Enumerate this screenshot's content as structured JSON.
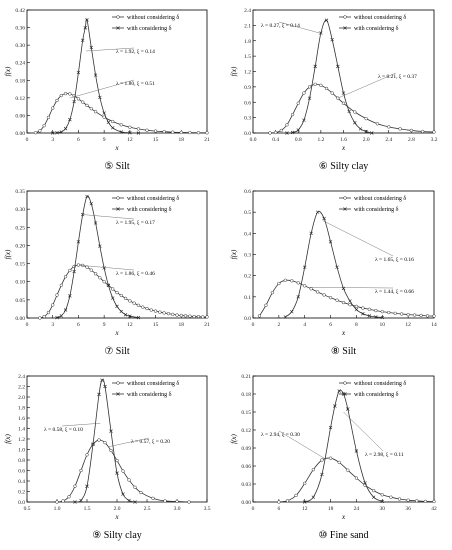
{
  "chart_data": [
    {
      "type": "line",
      "caption_number": "⑤",
      "caption_text": "Silt",
      "xlabel": "x",
      "ylabel": "f(x)",
      "xlim": [
        0,
        21
      ],
      "ylim": [
        0,
        0.45
      ],
      "xticks": [
        "0",
        "3",
        "6",
        "9",
        "12",
        "15",
        "18",
        "21"
      ],
      "yticks": [
        "0.00",
        "0.06",
        "0.12",
        "0.18",
        "0.24",
        "0.30",
        "0.36",
        "0.42"
      ],
      "legend": [
        "without considering δ",
        "with considering δ"
      ],
      "annotations": [
        "λ = 1.92, ξ = 0.14",
        "λ = 1.80, ξ = 0.51"
      ],
      "series": [
        {
          "name": "without considering δ",
          "marker": "circle",
          "x": [
            1,
            1.5,
            2,
            2.5,
            3,
            3.5,
            4,
            4.5,
            5,
            5.5,
            6,
            6.5,
            7,
            7.5,
            8,
            9,
            10,
            11,
            12,
            13,
            14,
            15,
            16,
            17,
            18,
            19,
            20,
            21
          ],
          "y": [
            0.001,
            0.008,
            0.027,
            0.057,
            0.091,
            0.119,
            0.137,
            0.144,
            0.143,
            0.136,
            0.125,
            0.113,
            0.101,
            0.089,
            0.078,
            0.058,
            0.042,
            0.03,
            0.021,
            0.015,
            0.01,
            0.007,
            0.005,
            0.003,
            0.002,
            0.0015,
            0.001,
            0.0007
          ]
        },
        {
          "name": "with considering δ",
          "marker": "x",
          "x": [
            3,
            3.5,
            4,
            4.5,
            5,
            5.5,
            6,
            6.5,
            6.8,
            7,
            7.5,
            8,
            8.5,
            9,
            9.5,
            10,
            11,
            12,
            13
          ],
          "y": [
            0.0,
            0.001,
            0.004,
            0.016,
            0.049,
            0.115,
            0.221,
            0.339,
            0.385,
            0.414,
            0.313,
            0.212,
            0.13,
            0.073,
            0.039,
            0.019,
            0.004,
            0.001,
            0.0
          ]
        }
      ]
    },
    {
      "type": "line",
      "caption_number": "⑥",
      "caption_text": "Silty clay",
      "xlabel": "x",
      "ylabel": "f(x)",
      "xlim": [
        0,
        3.2
      ],
      "ylim": [
        0,
        2.4
      ],
      "xticks": [
        "0.0",
        "0.4",
        "0.8",
        "1.2",
        "1.6",
        "2.0",
        "2.4",
        "2.8",
        "3.2"
      ],
      "yticks": [
        "0.0",
        "0.3",
        "0.6",
        "0.9",
        "1.2",
        "1.5",
        "1.8",
        "2.1",
        "2.4"
      ],
      "legend": [
        "without considering δ",
        "with considering δ"
      ],
      "annotations": [
        "λ = 0.27, ξ = 0.14",
        "λ = 0.21, ξ = 0.37"
      ],
      "series": [
        {
          "name": "without considering δ",
          "marker": "circle",
          "x": [
            0.3,
            0.4,
            0.5,
            0.6,
            0.7,
            0.8,
            0.9,
            1.0,
            1.1,
            1.2,
            1.3,
            1.4,
            1.5,
            1.6,
            1.8,
            2.0,
            2.2,
            2.4,
            2.6,
            2.8,
            3.0,
            3.2
          ],
          "y": [
            0.0,
            0.01,
            0.05,
            0.16,
            0.36,
            0.58,
            0.78,
            0.9,
            0.95,
            0.93,
            0.87,
            0.78,
            0.68,
            0.58,
            0.41,
            0.28,
            0.18,
            0.12,
            0.08,
            0.05,
            0.03,
            0.02
          ]
        },
        {
          "name": "with considering δ",
          "marker": "x",
          "x": [
            0.6,
            0.7,
            0.8,
            0.9,
            1.0,
            1.1,
            1.2,
            1.3,
            1.4,
            1.5,
            1.6,
            1.7,
            1.8,
            1.9,
            2.0,
            2.1
          ],
          "y": [
            0.0,
            0.01,
            0.06,
            0.25,
            0.68,
            1.3,
            1.95,
            2.2,
            1.82,
            1.3,
            0.78,
            0.42,
            0.2,
            0.08,
            0.03,
            0.0
          ]
        }
      ]
    },
    {
      "type": "line",
      "caption_number": "⑦",
      "caption_text": "Silt",
      "xlabel": "x",
      "ylabel": "f(x)",
      "xlim": [
        0,
        21
      ],
      "ylim": [
        0,
        0.35
      ],
      "xticks": [
        "0",
        "3",
        "6",
        "9",
        "12",
        "15",
        "18",
        "21"
      ],
      "yticks": [
        "0.00",
        "0.05",
        "0.10",
        "0.15",
        "0.20",
        "0.25",
        "0.30",
        "0.35"
      ],
      "legend": [
        "without considering δ",
        "with considering δ"
      ],
      "annotations": [
        "λ = 1.95, ξ = 0.17",
        "λ = 1.86, ξ = 0.46"
      ],
      "series": [
        {
          "name": "without considering δ",
          "marker": "circle",
          "x": [
            1.5,
            2,
            2.5,
            3,
            3.5,
            4,
            4.5,
            5,
            5.5,
            6,
            6.5,
            7,
            7.5,
            8,
            8.5,
            9,
            9.5,
            10,
            10.5,
            11,
            11.5,
            12,
            12.5,
            13,
            13.5,
            14,
            14.5,
            15,
            15.5,
            16,
            16.5,
            17,
            17.5,
            18,
            18.5,
            19,
            19.5,
            20,
            20.5,
            21
          ],
          "y": [
            0.0,
            0.004,
            0.015,
            0.036,
            0.063,
            0.09,
            0.114,
            0.131,
            0.142,
            0.146,
            0.145,
            0.14,
            0.132,
            0.122,
            0.111,
            0.1,
            0.09,
            0.08,
            0.07,
            0.062,
            0.054,
            0.047,
            0.041,
            0.035,
            0.03,
            0.026,
            0.022,
            0.019,
            0.016,
            0.014,
            0.012,
            0.01,
            0.008,
            0.007,
            0.006,
            0.005,
            0.004,
            0.004,
            0.003,
            0.003
          ]
        },
        {
          "name": "with considering δ",
          "marker": "x",
          "x": [
            3.5,
            4,
            4.5,
            5,
            5.5,
            6,
            6.5,
            7,
            7.5,
            8,
            8.5,
            9,
            9.5,
            10,
            10.5,
            11,
            11.5,
            12,
            13
          ],
          "y": [
            0.001,
            0.006,
            0.022,
            0.061,
            0.128,
            0.21,
            0.285,
            0.335,
            0.315,
            0.262,
            0.198,
            0.138,
            0.09,
            0.055,
            0.032,
            0.018,
            0.009,
            0.005,
            0.001
          ]
        }
      ]
    },
    {
      "type": "line",
      "caption_number": "⑧",
      "caption_text": "Silt",
      "xlabel": "x",
      "ylabel": "f(x)",
      "xlim": [
        0,
        14
      ],
      "ylim": [
        0,
        0.6
      ],
      "xticks": [
        "0",
        "2",
        "4",
        "6",
        "8",
        "10",
        "12",
        "14"
      ],
      "yticks": [
        "0.0",
        "0.1",
        "0.2",
        "0.3",
        "0.4",
        "0.5",
        "0.6"
      ],
      "legend": [
        "without considering δ",
        "with considering δ"
      ],
      "annotations": [
        "λ = 1.65, ξ = 0.16",
        "λ = 1.44, ξ = 0.66"
      ],
      "series": [
        {
          "name": "without considering δ",
          "marker": "circle",
          "x": [
            0.5,
            1,
            1.5,
            2,
            2.5,
            3,
            3.5,
            4,
            4.5,
            5,
            5.5,
            6,
            6.5,
            7,
            7.5,
            8,
            8.5,
            9,
            9.5,
            10,
            10.5,
            11,
            11.5,
            12,
            12.5,
            13,
            13.5,
            14
          ],
          "y": [
            0.01,
            0.06,
            0.12,
            0.163,
            0.178,
            0.176,
            0.166,
            0.152,
            0.138,
            0.123,
            0.109,
            0.096,
            0.084,
            0.073,
            0.063,
            0.055,
            0.047,
            0.041,
            0.035,
            0.03,
            0.026,
            0.022,
            0.019,
            0.016,
            0.014,
            0.012,
            0.01,
            0.009
          ]
        },
        {
          "name": "with considering δ",
          "marker": "x",
          "x": [
            2.5,
            3,
            3.5,
            4,
            4.5,
            5,
            5.5,
            6,
            6.5,
            7,
            7.5,
            8,
            8.5,
            9,
            9.5,
            10
          ],
          "y": [
            0.005,
            0.03,
            0.1,
            0.24,
            0.4,
            0.5,
            0.47,
            0.36,
            0.24,
            0.14,
            0.08,
            0.04,
            0.02,
            0.01,
            0.005,
            0.002
          ]
        }
      ]
    },
    {
      "type": "line",
      "caption_number": "⑨",
      "caption_text": "Silty clay",
      "xlabel": "x",
      "ylabel": "f(x)",
      "xlim": [
        0.5,
        3.5
      ],
      "ylim": [
        0,
        2.4
      ],
      "xticks": [
        "0.5",
        "1.0",
        "1.5",
        "2.0",
        "2.5",
        "3.0",
        "3.5"
      ],
      "yticks": [
        "0.0",
        "0.2",
        "0.4",
        "0.6",
        "0.8",
        "1.0",
        "1.2",
        "1.4",
        "1.6",
        "1.8",
        "2.0",
        "2.2",
        "2.4"
      ],
      "legend": [
        "without considering δ",
        "with considering δ"
      ],
      "annotations": [
        "λ = 0.58, ξ = 0.10",
        "λ = 0.57, ξ = 0.20"
      ],
      "series": [
        {
          "name": "without considering δ",
          "marker": "circle",
          "x": [
            1.0,
            1.1,
            1.2,
            1.3,
            1.4,
            1.5,
            1.6,
            1.7,
            1.8,
            1.9,
            2.0,
            2.1,
            2.2,
            2.3,
            2.4,
            2.6,
            2.8,
            3.0,
            3.2
          ],
          "y": [
            0.0,
            0.02,
            0.1,
            0.3,
            0.6,
            0.9,
            1.1,
            1.18,
            1.13,
            0.98,
            0.79,
            0.59,
            0.42,
            0.28,
            0.18,
            0.07,
            0.02,
            0.01,
            0.0
          ]
        },
        {
          "name": "with considering δ",
          "marker": "x",
          "x": [
            1.3,
            1.4,
            1.5,
            1.6,
            1.7,
            1.75,
            1.8,
            1.9,
            2.0,
            2.1,
            2.2,
            2.3
          ],
          "y": [
            0.0,
            0.03,
            0.3,
            1.1,
            2.05,
            2.32,
            2.2,
            1.35,
            0.55,
            0.15,
            0.03,
            0.0
          ]
        }
      ]
    },
    {
      "type": "line",
      "caption_number": "⑩",
      "caption_text": "Fine sand",
      "xlabel": "x",
      "ylabel": "f(x)",
      "xlim": [
        0,
        42
      ],
      "ylim": [
        0,
        0.21
      ],
      "xticks": [
        "0",
        "6",
        "12",
        "18",
        "24",
        "30",
        "36",
        "42"
      ],
      "yticks": [
        "0.00",
        "0.03",
        "0.06",
        "0.09",
        "0.12",
        "0.15",
        "0.18",
        "0.21"
      ],
      "legend": [
        "without considering δ",
        "with considering δ"
      ],
      "annotations": [
        "λ = 2.94, ξ = 0.30",
        "λ = 2.98, ξ = 0.11"
      ],
      "series": [
        {
          "name": "without considering δ",
          "marker": "circle",
          "x": [
            6,
            8,
            10,
            12,
            14,
            16,
            18,
            20,
            22,
            24,
            26,
            28,
            30,
            32,
            34,
            36,
            38,
            40,
            42
          ],
          "y": [
            0.0,
            0.002,
            0.011,
            0.031,
            0.054,
            0.07,
            0.073,
            0.066,
            0.053,
            0.04,
            0.028,
            0.019,
            0.012,
            0.008,
            0.005,
            0.003,
            0.002,
            0.001,
            0.0007
          ]
        },
        {
          "name": "with considering δ",
          "marker": "x",
          "x": [
            12,
            14,
            16,
            18,
            19,
            20,
            21,
            22,
            24,
            26,
            28,
            30
          ],
          "y": [
            0.0,
            0.008,
            0.046,
            0.124,
            0.16,
            0.185,
            0.18,
            0.155,
            0.085,
            0.032,
            0.008,
            0.001
          ]
        }
      ]
    }
  ]
}
